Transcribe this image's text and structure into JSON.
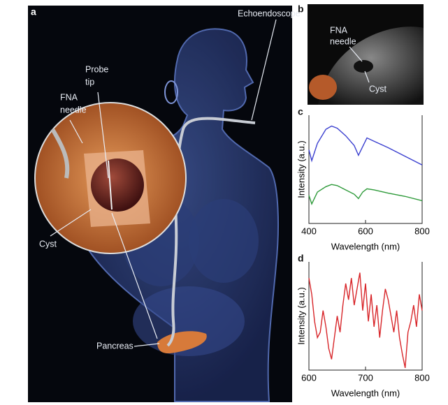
{
  "panel_a": {
    "letter": "a",
    "echoendoscope": "Echoendoscope",
    "probe_tip": [
      "Probe",
      "tip"
    ],
    "fna_needle": [
      "FNA",
      "needle"
    ],
    "cyst": "Cyst",
    "pancreas": "Pancreas"
  },
  "panel_b": {
    "letter": "b",
    "fna_needle": [
      "FNA",
      "needle"
    ],
    "cyst": "Cyst"
  },
  "chart_data": [
    {
      "type": "line",
      "letter": "c",
      "xlabel": "Wavelength (nm)",
      "ylabel": "Intensity (a.u.)",
      "xlim": [
        400,
        800
      ],
      "xticks": [
        400,
        600,
        800
      ],
      "ylim": [
        0,
        1
      ],
      "x": [
        400,
        410,
        430,
        460,
        480,
        500,
        530,
        560,
        575,
        590,
        605,
        630,
        680,
        740,
        800
      ],
      "series": [
        {
          "color": "#3a3fcf",
          "values": [
            0.68,
            0.58,
            0.74,
            0.87,
            0.9,
            0.88,
            0.81,
            0.72,
            0.63,
            0.71,
            0.79,
            0.76,
            0.7,
            0.62,
            0.54
          ]
        },
        {
          "color": "#2e9a3a",
          "values": [
            0.26,
            0.18,
            0.29,
            0.34,
            0.36,
            0.35,
            0.31,
            0.27,
            0.23,
            0.29,
            0.32,
            0.31,
            0.28,
            0.25,
            0.21
          ]
        }
      ]
    },
    {
      "type": "line",
      "letter": "d",
      "xlabel": "Wavelength (nm)",
      "ylabel": "Intensity (a.u.)",
      "xlim": [
        600,
        800
      ],
      "xticks": [
        600,
        700,
        800
      ],
      "ylim": [
        0,
        1
      ],
      "x": [
        600,
        605,
        610,
        615,
        620,
        625,
        630,
        635,
        640,
        645,
        650,
        655,
        660,
        665,
        670,
        675,
        680,
        685,
        690,
        695,
        700,
        705,
        710,
        715,
        720,
        725,
        730,
        735,
        740,
        745,
        750,
        755,
        760,
        765,
        770,
        775,
        780,
        785,
        790,
        795,
        800
      ],
      "series": [
        {
          "color": "#d8262a",
          "values": [
            0.85,
            0.7,
            0.45,
            0.3,
            0.35,
            0.55,
            0.4,
            0.2,
            0.1,
            0.3,
            0.5,
            0.35,
            0.6,
            0.8,
            0.65,
            0.85,
            0.6,
            0.75,
            0.9,
            0.55,
            0.8,
            0.45,
            0.7,
            0.4,
            0.6,
            0.3,
            0.55,
            0.75,
            0.65,
            0.5,
            0.35,
            0.55,
            0.3,
            0.15,
            0.02,
            0.35,
            0.45,
            0.6,
            0.4,
            0.7,
            0.55
          ]
        }
      ]
    }
  ]
}
